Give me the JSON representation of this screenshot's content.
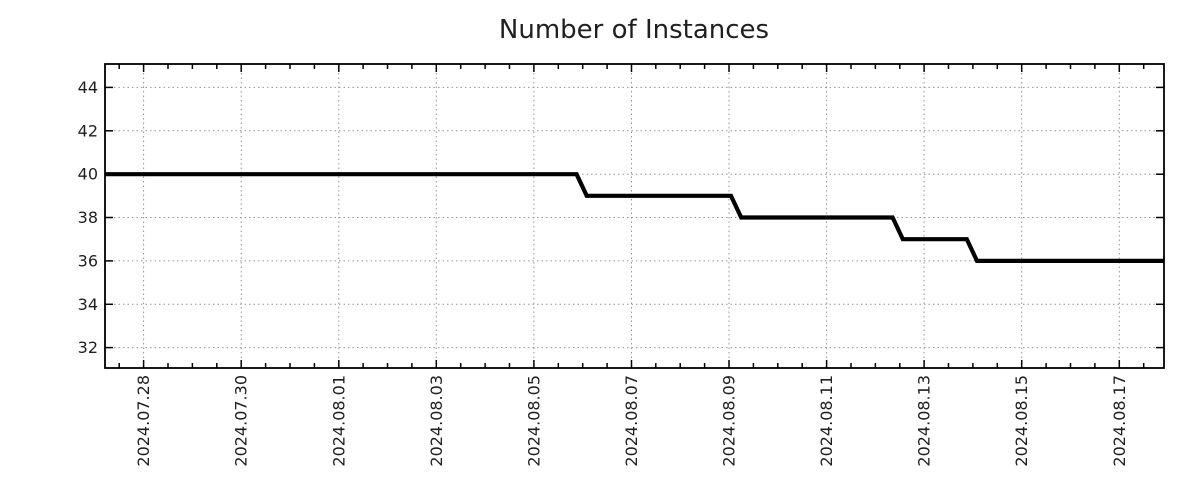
{
  "page": {
    "background": "#ffffff"
  },
  "chart_data": {
    "type": "line",
    "subtype": "step",
    "title": "Number of Instances",
    "grid": {
      "show": true,
      "style": "dotted",
      "color": "#949494"
    },
    "colors": {
      "line": "#000000",
      "axis": "#000000",
      "text": "#1f1f1f",
      "background": "#ffffff"
    },
    "legend": {
      "show": false
    },
    "x_axis": {
      "kind": "time",
      "range": [
        "2024-07-27T05:00",
        "2024-08-17T22:00"
      ],
      "tick_labels": [
        "2024.07.28",
        "2024.07.30",
        "2024.08.01",
        "2024.08.03",
        "2024.08.05",
        "2024.08.07",
        "2024.08.09",
        "2024.08.11",
        "2024.08.13",
        "2024.08.15",
        "2024.08.17"
      ],
      "major_tick_days": 2,
      "minor_tick_hours": 12,
      "label_rotation_deg": -90
    },
    "y_axis": {
      "range": [
        31.06,
        45.08
      ],
      "ticks": [
        32,
        34,
        36,
        38,
        40,
        42,
        44
      ]
    },
    "series": [
      {
        "name": "Number of Instances",
        "color": "#000000",
        "points": [
          {
            "t": "2024-07-27T05:00",
            "v": 40
          },
          {
            "t": "2024-08-05T21:00",
            "v": 40
          },
          {
            "t": "2024-08-06T02:00",
            "v": 39
          },
          {
            "t": "2024-08-09T01:00",
            "v": 39
          },
          {
            "t": "2024-08-09T06:00",
            "v": 38
          },
          {
            "t": "2024-08-12T08:30",
            "v": 38
          },
          {
            "t": "2024-08-12T13:30",
            "v": 37
          },
          {
            "t": "2024-08-13T21:00",
            "v": 37
          },
          {
            "t": "2024-08-14T02:00",
            "v": 36
          },
          {
            "t": "2024-08-17T22:00",
            "v": 36
          }
        ]
      }
    ]
  }
}
